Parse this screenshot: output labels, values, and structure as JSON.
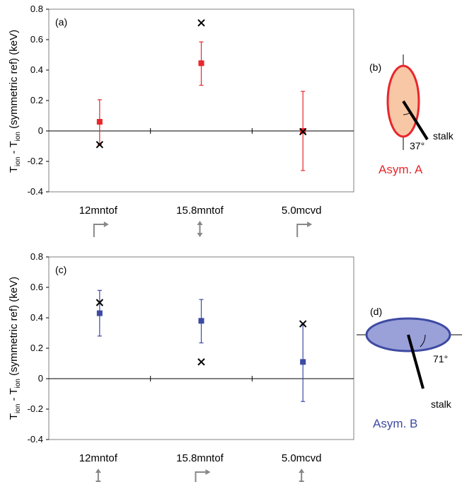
{
  "colors": {
    "red": "#e8262b",
    "blue": "#3d4aa3",
    "cross": "#000000",
    "arrow": "#888888",
    "ellipse_a_fill": "#f7c7a6",
    "ellipse_b_fill": "#9aa0d8"
  },
  "ylabel_parts": {
    "t1": "T",
    "s1": "ion",
    "mid": " - T",
    "s2": "ion",
    "tail": " (symmetric ref) (keV)"
  },
  "chart_data": [
    {
      "type": "scatter",
      "panel_label": "(a)",
      "categories": [
        "12mntof",
        "15.8mntof",
        "5.0mcvd"
      ],
      "ylim": [
        -0.4,
        0.8
      ],
      "yticks": [
        "0.8",
        "0.6",
        "0.4",
        "0.2",
        "0",
        "-0.2",
        "-0.4"
      ],
      "series": [
        {
          "marker": "square-with-errorbar",
          "color": "#e8262b",
          "values": [
            0.06,
            0.445,
            0.0
          ],
          "err_low": [
            -0.09,
            0.3,
            -0.26
          ],
          "err_high": [
            0.205,
            0.585,
            0.26
          ]
        },
        {
          "marker": "cross",
          "color": "#000000",
          "values": [
            -0.09,
            0.71,
            -0.005
          ]
        }
      ],
      "arrow_icons": [
        "bent-arrow-icon",
        "vertical-double-arrow-icon",
        "bent-arrow-icon"
      ]
    },
    {
      "type": "scatter",
      "panel_label": "(c)",
      "categories": [
        "12mntof",
        "15.8mntof",
        "5.0mcvd"
      ],
      "ylim": [
        -0.4,
        0.8
      ],
      "yticks": [
        "0.8",
        "0.6",
        "0.4",
        "0.2",
        "0",
        "-0.2",
        "-0.4"
      ],
      "series": [
        {
          "marker": "square-with-errorbar",
          "color": "#3d4aa3",
          "values": [
            0.43,
            0.38,
            0.11
          ],
          "err_low": [
            0.28,
            0.235,
            -0.15
          ],
          "err_high": [
            0.58,
            0.52,
            0.355
          ]
        },
        {
          "marker": "cross",
          "color": "#000000",
          "values": [
            0.5,
            0.11,
            0.36
          ]
        }
      ],
      "arrow_icons": [
        "vertical-double-arrow-icon",
        "bent-arrow-icon",
        "vertical-double-arrow-icon"
      ]
    }
  ],
  "diagram_b": {
    "label": "(b)",
    "stalk": "stalk",
    "angle": "37°",
    "title": "Asym. A"
  },
  "diagram_d": {
    "label": "(d)",
    "stalk": "stalk",
    "angle": "71°",
    "title": "Asym. B"
  }
}
